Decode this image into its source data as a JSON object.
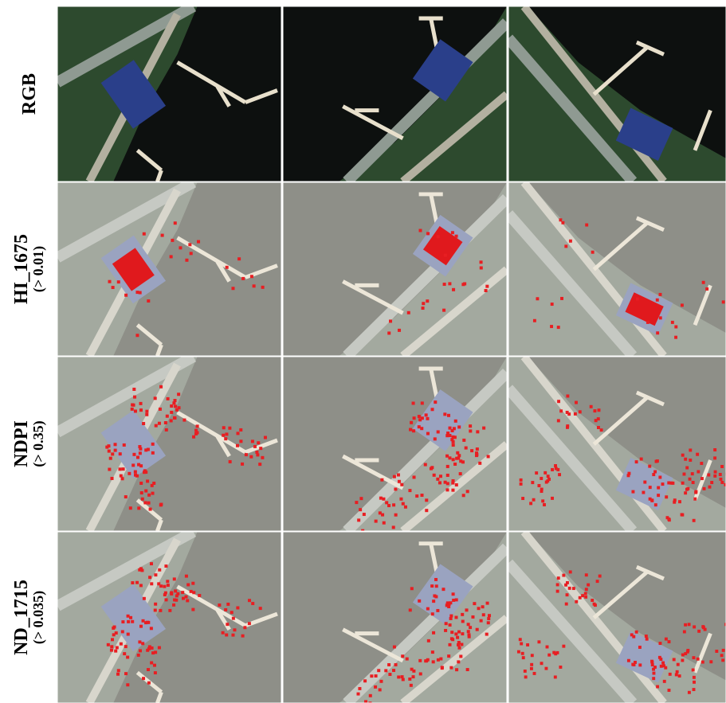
{
  "rows": [
    {
      "label": "RGB"
    },
    {
      "label": "HI_1675",
      "threshold": "(> 0.01)"
    },
    {
      "label": "NDPI",
      "threshold": "(> 0.35)"
    },
    {
      "label": "ND_1715",
      "threshold": "(> 0.035)"
    }
  ]
}
